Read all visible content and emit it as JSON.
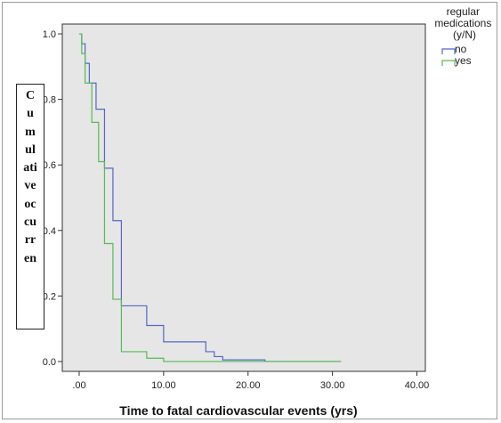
{
  "chart_data": {
    "type": "line",
    "step": true,
    "xlabel": "Time to fatal cardiovascular events (yrs)",
    "ylabel": "Cumulative occurren",
    "xlim": [
      -2,
      41
    ],
    "ylim": [
      -0.03,
      1.03
    ],
    "x_ticks": [
      0,
      10,
      20,
      30,
      40
    ],
    "x_tick_labels": [
      ".00",
      "10.00",
      "20.00",
      "30.00",
      "40.00"
    ],
    "y_ticks": [
      0,
      0.2,
      0.4,
      0.6,
      0.8,
      1.0
    ],
    "y_tick_labels": [
      "0.0",
      "0.2",
      "0.4",
      "0.6",
      "0.8",
      "1.0"
    ],
    "legend": {
      "title": "regular medications (y/N)",
      "position": "right"
    },
    "series": [
      {
        "name": "no",
        "color": "#5566c8",
        "points": [
          [
            0,
            1.0
          ],
          [
            0.3,
            0.97
          ],
          [
            0.7,
            0.91
          ],
          [
            1.2,
            0.85
          ],
          [
            2.0,
            0.77
          ],
          [
            3.0,
            0.59
          ],
          [
            4.0,
            0.43
          ],
          [
            5.0,
            0.17
          ],
          [
            8.0,
            0.11
          ],
          [
            10.0,
            0.06
          ],
          [
            15.0,
            0.03
          ],
          [
            16.0,
            0.015
          ],
          [
            17.0,
            0.005
          ],
          [
            22.0,
            0.0
          ],
          [
            31.0,
            0.0
          ]
        ]
      },
      {
        "name": "yes",
        "color": "#55bb55",
        "points": [
          [
            0,
            1.0
          ],
          [
            0.3,
            0.94
          ],
          [
            0.7,
            0.85
          ],
          [
            1.5,
            0.73
          ],
          [
            2.3,
            0.61
          ],
          [
            3.0,
            0.36
          ],
          [
            4.0,
            0.19
          ],
          [
            5.0,
            0.03
          ],
          [
            8.0,
            0.01
          ],
          [
            10.0,
            0.0
          ],
          [
            31.0,
            0.0
          ]
        ]
      }
    ]
  }
}
